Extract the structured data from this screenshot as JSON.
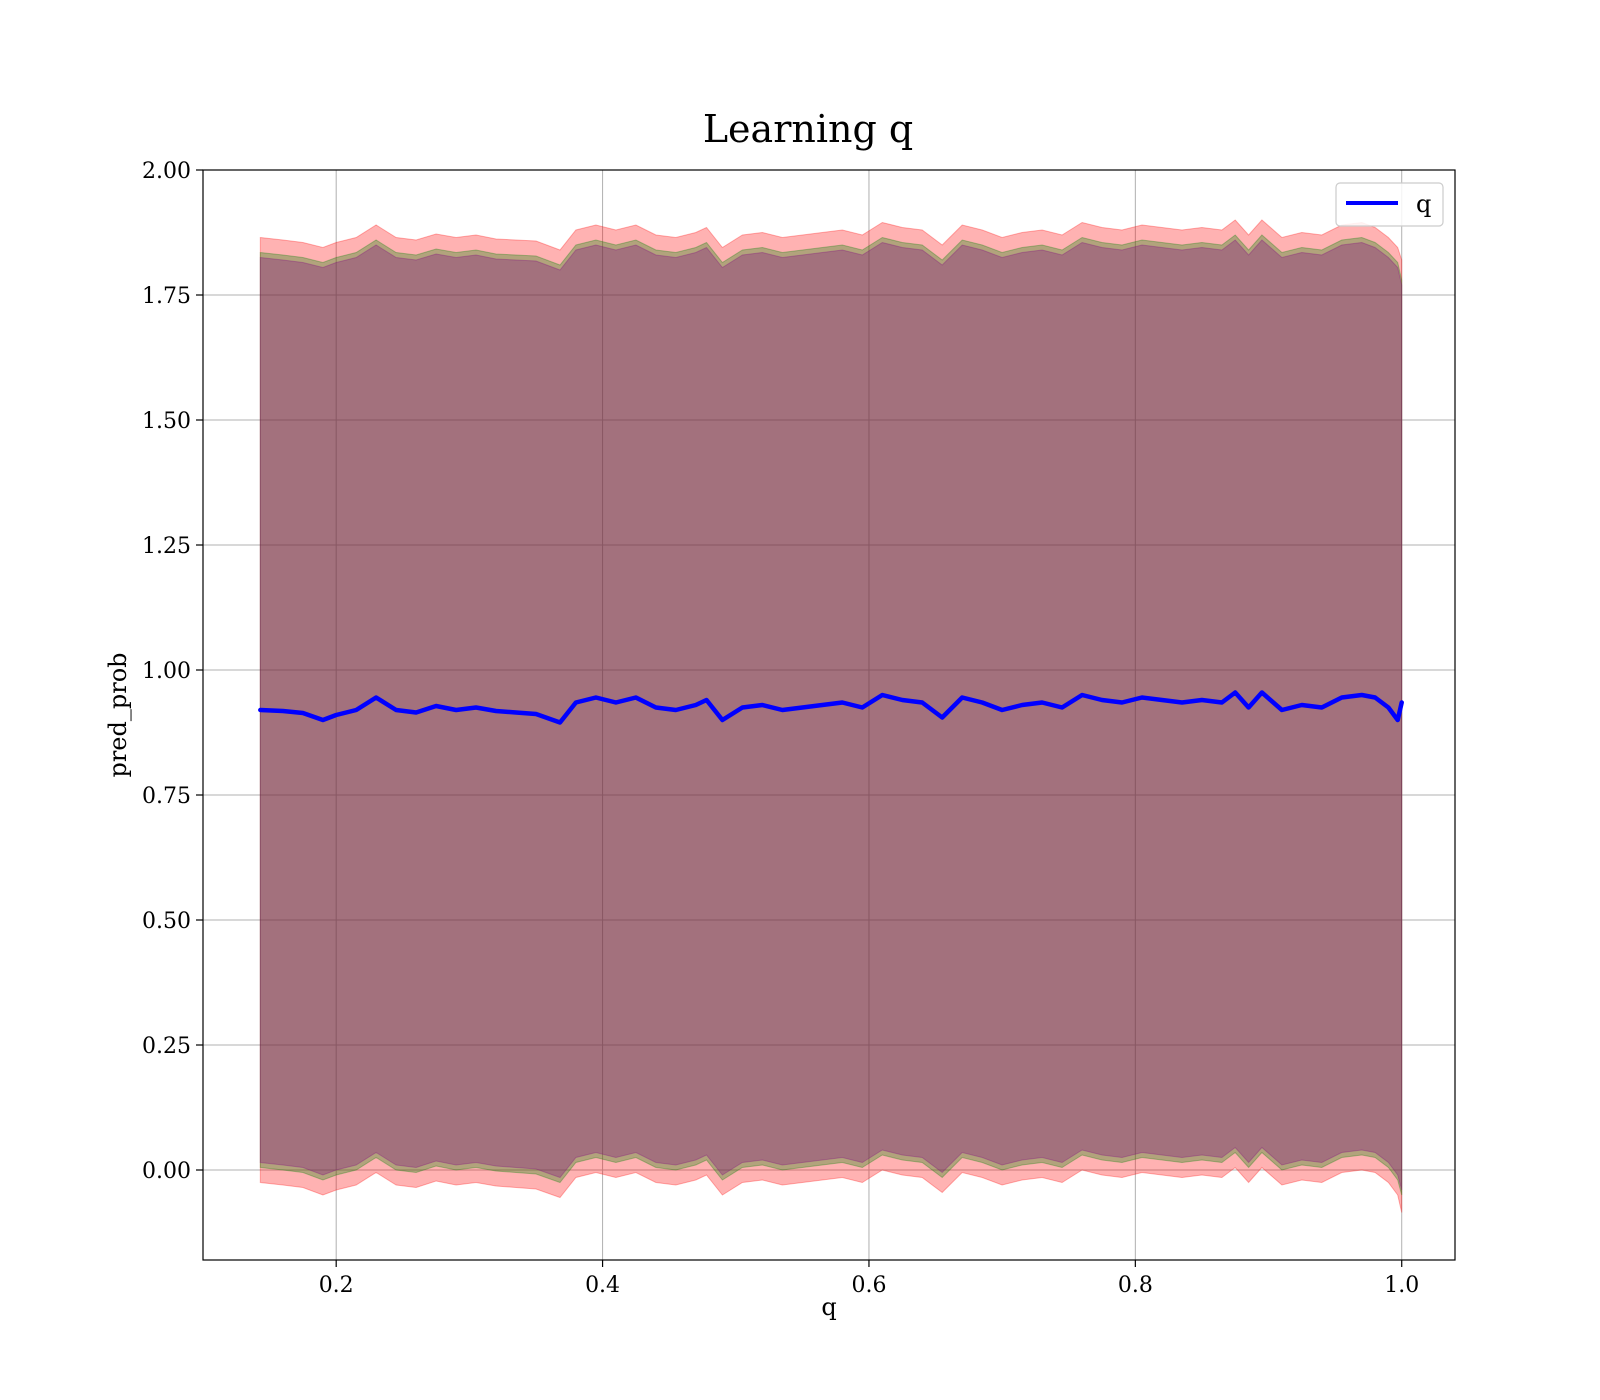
{
  "chart_data": {
    "type": "line",
    "title": "Learning q",
    "xlabel": "q",
    "ylabel": "pred_prob",
    "xlim": [
      0.1,
      1.04
    ],
    "ylim": [
      -0.18,
      2.0
    ],
    "grid": true,
    "legend_position": "top-right",
    "x_ticks": [
      {
        "value": 0.2,
        "label": "0.2"
      },
      {
        "value": 0.4,
        "label": "0.4"
      },
      {
        "value": 0.6,
        "label": "0.6"
      },
      {
        "value": 0.8,
        "label": "0.8"
      },
      {
        "value": 1.0,
        "label": "1.0"
      }
    ],
    "y_ticks": [
      {
        "value": 0.0,
        "label": "0.00"
      },
      {
        "value": 0.25,
        "label": "0.25"
      },
      {
        "value": 0.5,
        "label": "0.50"
      },
      {
        "value": 0.75,
        "label": "0.75"
      },
      {
        "value": 1.0,
        "label": "1.00"
      },
      {
        "value": 1.25,
        "label": "1.25"
      },
      {
        "value": 1.5,
        "label": "1.50"
      },
      {
        "value": 1.75,
        "label": "1.75"
      },
      {
        "value": 2.0,
        "label": "2.00"
      }
    ],
    "series": [
      {
        "name": "q",
        "color": "#0000ff",
        "x": [
          0.143,
          0.16,
          0.175,
          0.19,
          0.2,
          0.215,
          0.23,
          0.245,
          0.26,
          0.275,
          0.29,
          0.305,
          0.32,
          0.335,
          0.35,
          0.368,
          0.38,
          0.395,
          0.41,
          0.425,
          0.44,
          0.455,
          0.47,
          0.478,
          0.49,
          0.505,
          0.52,
          0.535,
          0.55,
          0.565,
          0.58,
          0.595,
          0.61,
          0.625,
          0.64,
          0.655,
          0.67,
          0.685,
          0.7,
          0.715,
          0.73,
          0.745,
          0.76,
          0.775,
          0.79,
          0.805,
          0.82,
          0.835,
          0.85,
          0.865,
          0.875,
          0.885,
          0.895,
          0.91,
          0.925,
          0.94,
          0.955,
          0.97,
          0.98,
          0.99,
          0.997,
          1.0
        ],
        "values": [
          0.92,
          0.918,
          0.914,
          0.9,
          0.91,
          0.92,
          0.945,
          0.92,
          0.915,
          0.928,
          0.92,
          0.925,
          0.918,
          0.915,
          0.912,
          0.895,
          0.935,
          0.945,
          0.935,
          0.945,
          0.925,
          0.92,
          0.93,
          0.94,
          0.9,
          0.925,
          0.93,
          0.92,
          0.925,
          0.93,
          0.935,
          0.925,
          0.95,
          0.94,
          0.935,
          0.905,
          0.945,
          0.935,
          0.92,
          0.93,
          0.935,
          0.925,
          0.95,
          0.94,
          0.935,
          0.945,
          0.94,
          0.935,
          0.94,
          0.935,
          0.955,
          0.925,
          0.955,
          0.92,
          0.93,
          0.925,
          0.945,
          0.95,
          0.945,
          0.925,
          0.9,
          0.935
        ]
      }
    ],
    "bands": [
      {
        "color": "#ff0000",
        "opacity": 0.3,
        "lower": [
          -0.025,
          -0.03,
          -0.035,
          -0.05,
          -0.04,
          -0.03,
          -0.005,
          -0.03,
          -0.035,
          -0.022,
          -0.03,
          -0.025,
          -0.032,
          -0.035,
          -0.038,
          -0.055,
          -0.015,
          -0.005,
          -0.015,
          -0.005,
          -0.025,
          -0.03,
          -0.02,
          -0.01,
          -0.05,
          -0.025,
          -0.02,
          -0.03,
          -0.025,
          -0.02,
          -0.015,
          -0.025,
          0.0,
          -0.01,
          -0.015,
          -0.045,
          -0.005,
          -0.015,
          -0.03,
          -0.02,
          -0.015,
          -0.025,
          0.0,
          -0.01,
          -0.015,
          -0.005,
          -0.01,
          -0.015,
          -0.01,
          -0.015,
          0.005,
          -0.025,
          0.005,
          -0.03,
          -0.02,
          -0.025,
          -0.005,
          0.0,
          -0.005,
          -0.025,
          -0.05,
          -0.085
        ],
        "upper": [
          1.865,
          1.86,
          1.855,
          1.845,
          1.855,
          1.865,
          1.89,
          1.865,
          1.86,
          1.872,
          1.865,
          1.87,
          1.862,
          1.86,
          1.858,
          1.84,
          1.88,
          1.89,
          1.88,
          1.89,
          1.87,
          1.865,
          1.875,
          1.885,
          1.845,
          1.87,
          1.875,
          1.865,
          1.87,
          1.875,
          1.88,
          1.87,
          1.895,
          1.885,
          1.88,
          1.85,
          1.89,
          1.88,
          1.865,
          1.875,
          1.88,
          1.87,
          1.895,
          1.885,
          1.88,
          1.89,
          1.885,
          1.88,
          1.885,
          1.88,
          1.9,
          1.87,
          1.9,
          1.865,
          1.875,
          1.87,
          1.89,
          1.895,
          1.885,
          1.865,
          1.845,
          1.82
        ]
      },
      {
        "color": "#008000",
        "opacity": 0.3,
        "lower": [
          0.005,
          0.0,
          -0.005,
          -0.02,
          -0.01,
          0.0,
          0.025,
          0.0,
          -0.005,
          0.008,
          0.0,
          0.005,
          -0.002,
          -0.005,
          -0.008,
          -0.025,
          0.015,
          0.025,
          0.015,
          0.025,
          0.005,
          0.0,
          0.01,
          0.02,
          -0.02,
          0.005,
          0.01,
          0.0,
          0.005,
          0.01,
          0.015,
          0.005,
          0.03,
          0.02,
          0.015,
          -0.015,
          0.025,
          0.015,
          0.0,
          0.01,
          0.015,
          0.005,
          0.03,
          0.02,
          0.015,
          0.025,
          0.02,
          0.015,
          0.02,
          0.015,
          0.035,
          0.005,
          0.035,
          0.0,
          0.01,
          0.005,
          0.025,
          0.03,
          0.025,
          0.005,
          -0.02,
          -0.05
        ],
        "upper": [
          1.835,
          1.83,
          1.825,
          1.815,
          1.825,
          1.835,
          1.86,
          1.835,
          1.83,
          1.842,
          1.835,
          1.84,
          1.832,
          1.83,
          1.828,
          1.81,
          1.85,
          1.86,
          1.85,
          1.86,
          1.84,
          1.835,
          1.845,
          1.855,
          1.815,
          1.84,
          1.845,
          1.835,
          1.84,
          1.845,
          1.85,
          1.84,
          1.865,
          1.855,
          1.85,
          1.82,
          1.86,
          1.85,
          1.835,
          1.845,
          1.85,
          1.84,
          1.865,
          1.855,
          1.85,
          1.86,
          1.855,
          1.85,
          1.855,
          1.85,
          1.87,
          1.84,
          1.87,
          1.835,
          1.845,
          1.84,
          1.86,
          1.865,
          1.855,
          1.835,
          1.815,
          1.78
        ]
      },
      {
        "color": "#800080",
        "opacity": 0.3,
        "lower": [
          0.015,
          0.01,
          0.005,
          -0.01,
          0.0,
          0.01,
          0.035,
          0.01,
          0.005,
          0.018,
          0.01,
          0.015,
          0.008,
          0.005,
          0.002,
          -0.015,
          0.025,
          0.035,
          0.025,
          0.035,
          0.015,
          0.01,
          0.02,
          0.03,
          -0.01,
          0.015,
          0.02,
          0.01,
          0.015,
          0.02,
          0.025,
          0.015,
          0.04,
          0.03,
          0.025,
          -0.005,
          0.035,
          0.025,
          0.01,
          0.02,
          0.025,
          0.015,
          0.04,
          0.03,
          0.025,
          0.035,
          0.03,
          0.025,
          0.03,
          0.025,
          0.045,
          0.015,
          0.045,
          0.01,
          0.02,
          0.015,
          0.035,
          0.04,
          0.035,
          0.015,
          -0.01,
          -0.04
        ],
        "upper": [
          1.825,
          1.82,
          1.815,
          1.805,
          1.815,
          1.825,
          1.85,
          1.825,
          1.82,
          1.832,
          1.825,
          1.83,
          1.822,
          1.82,
          1.818,
          1.8,
          1.84,
          1.85,
          1.84,
          1.85,
          1.83,
          1.825,
          1.835,
          1.845,
          1.805,
          1.83,
          1.835,
          1.825,
          1.83,
          1.835,
          1.84,
          1.83,
          1.855,
          1.845,
          1.84,
          1.81,
          1.85,
          1.84,
          1.825,
          1.835,
          1.84,
          1.83,
          1.855,
          1.845,
          1.84,
          1.85,
          1.845,
          1.84,
          1.845,
          1.84,
          1.86,
          1.83,
          1.86,
          1.825,
          1.835,
          1.83,
          1.85,
          1.855,
          1.845,
          1.825,
          1.805,
          1.77
        ]
      }
    ]
  }
}
